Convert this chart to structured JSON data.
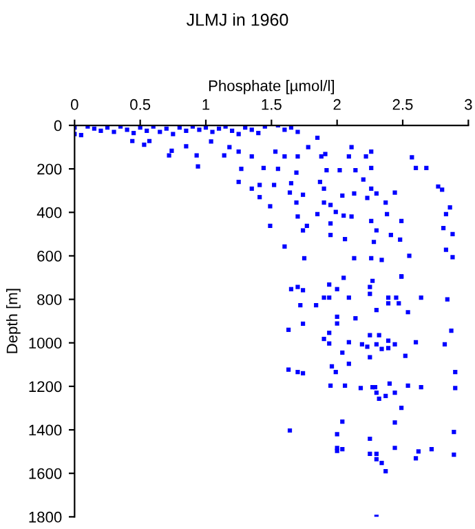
{
  "chart_data": {
    "type": "scatter",
    "title": "JLMJ in 1960",
    "xlabel": "Phosphate [µmol/l]",
    "ylabel": "Depth [m]",
    "xlim": [
      0,
      3
    ],
    "xticks": [
      0,
      0.5,
      1,
      1.5,
      2,
      2.5,
      3
    ],
    "ylim": [
      1800,
      0
    ],
    "yticks": [
      0,
      200,
      400,
      600,
      800,
      1000,
      1200,
      1400,
      1600,
      1800
    ],
    "marker": "square",
    "grid": false,
    "series": [
      {
        "color": "#0000ff",
        "x": [
          0,
          0,
          0.05,
          0.1,
          0.15,
          0.2,
          0.25,
          0.3,
          0.35,
          0.4,
          0.45,
          0.5,
          0.55,
          0.6,
          0.65,
          0.7,
          0.75,
          0.8,
          0.85,
          0.9,
          0.95,
          1.0,
          1.05,
          1.1,
          1.15,
          1.2,
          1.25,
          1.3,
          1.35,
          1.4,
          1.45,
          1.55,
          1.6,
          1.65,
          1.7,
          0.57,
          0.53,
          0.44,
          0.72,
          0.74,
          0.85,
          0.93,
          0.94,
          1.04,
          1.14,
          1.18,
          1.25,
          1.25,
          1.27,
          1.35,
          1.35,
          1.41,
          1.41,
          1.44,
          1.49,
          1.53,
          1.52,
          1.49,
          1.55,
          1.6,
          1.6,
          1.64,
          1.65,
          1.69,
          1.7,
          1.69,
          1.7,
          1.74,
          1.74,
          1.75,
          1.78,
          1.77,
          1.85,
          1.85,
          1.87,
          1.88,
          1.9,
          1.9,
          1.91,
          1.92,
          1.95,
          1.95,
          1.95,
          1.99,
          2.02,
          2.04,
          2.05,
          2.06,
          2.09,
          2.11,
          2.11,
          2.13,
          2.13,
          2.14,
          2.2,
          2.22,
          2.23,
          2.26,
          2.26,
          2.26,
          2.26,
          2.26,
          2.28,
          2.3,
          2.3,
          2.34,
          2.37,
          2.38,
          2.41,
          2.44,
          2.48,
          2.49,
          2.49,
          2.55,
          2.57,
          2.6,
          2.68,
          2.77,
          2.8,
          2.81,
          2.83,
          2.86,
          2.88,
          2.88,
          2.83,
          1.65,
          1.7,
          1.74,
          1.72,
          1.84,
          1.9,
          1.94,
          1.74,
          1.63,
          1.94,
          1.9,
          1.94,
          2.0,
          2.0,
          2.14,
          2.09,
          2.04,
          2.09,
          2.09,
          2.19,
          2.23,
          2.25,
          2.25,
          2.3,
          2.3,
          2.32,
          2.34,
          2.39,
          2.39,
          2.39,
          2.39,
          2.44,
          2.45,
          2.47,
          2.52,
          2.54,
          2.6,
          2.64,
          2.82,
          2.84,
          2.87,
          2.9,
          1.63,
          1.7,
          1.74,
          1.96,
          1.99,
          1.95,
          2.06,
          2.18,
          2.27,
          2.3,
          2.29,
          2.37,
          2.32,
          2.4,
          2.44,
          2.49,
          2.54,
          2.64,
          2.9,
          1.64,
          2.0,
          2.04,
          2.44,
          2.89,
          2.0,
          2.0,
          2.04,
          2.25,
          2.25,
          2.3,
          2.3,
          2.34,
          2.37,
          2.44,
          2.6,
          2.62,
          2.72,
          2.89,
          2.3,
          2.25,
          2.25,
          1.94,
          2.0,
          2.05,
          2.27,
          2.49
        ],
        "values": [
          10,
          40,
          45,
          5,
          15,
          25,
          10,
          30,
          5,
          20,
          35,
          10,
          25,
          5,
          30,
          15,
          40,
          10,
          25,
          5,
          20,
          10,
          30,
          15,
          5,
          25,
          40,
          10,
          20,
          35,
          5,
          0,
          20,
          10,
          30,
          72,
          89,
          72,
          138,
          117,
          96,
          138,
          189,
          74,
          138,
          100,
          121,
          260,
          200,
          143,
          291,
          330,
          274,
          196,
          462,
          121,
          274,
          372,
          200,
          557,
          143,
          309,
          266,
          217,
          143,
          355,
          419,
          319,
          483,
          611,
          100,
          462,
          57,
          408,
          260,
          143,
          291,
          355,
          132,
          206,
          504,
          451,
          366,
          398,
          206,
          323,
          415,
          523,
          143,
          100,
          419,
          611,
          313,
          206,
          249,
          143,
          334,
          196,
          291,
          440,
          611,
          121,
          536,
          313,
          483,
          619,
          355,
          408,
          504,
          309,
          525,
          440,
          696,
          600,
          147,
          196,
          196,
          281,
          296,
          472,
          408,
          377,
          500,
          606,
          572,
          753,
          743,
          758,
          827,
          827,
          792,
          792,
          912,
          940,
          954,
          982,
          1003,
          880,
          911,
          887,
          792,
          1045,
          997,
          1096,
          1007,
          1018,
          965,
          1066,
          849,
          1007,
          965,
          1028,
          792,
          818,
          990,
          1024,
          1007,
          792,
          818,
          1060,
          859,
          997,
          792,
          1007,
          800,
          944,
          1134,
          1123,
          1134,
          1140,
          1108,
          1134,
          1197,
          1197,
          1208,
          1204,
          1229,
          1204,
          1244,
          1257,
          1187,
          1229,
          1299,
          1197,
          1204,
          1208,
          1403,
          1420,
          1362,
          1366,
          1410,
          1483,
          1497,
          1489,
          1441,
          1510,
          1510,
          1535,
          1552,
          1590,
          1483,
          1531,
          1499,
          1489,
          1514,
          1800,
          743,
          775,
          732,
          753,
          701,
          715,
          694
        ]
      }
    ]
  }
}
